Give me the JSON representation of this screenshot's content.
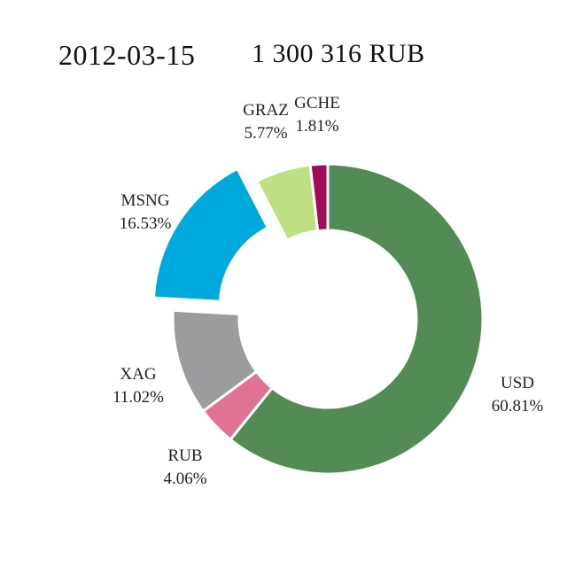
{
  "header": {
    "date": "2012-03-15",
    "total": "1 300 316 RUB"
  },
  "chart_data": {
    "type": "pie",
    "subtype": "donut",
    "title": "",
    "slices": [
      {
        "label": "USD",
        "percent_text": "60.81%",
        "value": 60.81,
        "color": "#528b56",
        "exploded": false
      },
      {
        "label": "RUB",
        "percent_text": "4.06%",
        "value": 4.06,
        "color": "#e07393",
        "exploded": false
      },
      {
        "label": "XAG",
        "percent_text": "11.02%",
        "value": 11.02,
        "color": "#9b9c9e",
        "exploded": false
      },
      {
        "label": "MSNG",
        "percent_text": "16.53%",
        "value": 16.53,
        "color": "#00a9dc",
        "exploded": true
      },
      {
        "label": "GRAZ",
        "percent_text": "5.77%",
        "value": 5.77,
        "color": "#bee083",
        "exploded": false
      },
      {
        "label": "GCHE",
        "percent_text": "1.81%",
        "value": 1.81,
        "color": "#a20b58",
        "exploded": false
      }
    ],
    "start_angle": "12 o'clock",
    "direction": "clockwise"
  }
}
